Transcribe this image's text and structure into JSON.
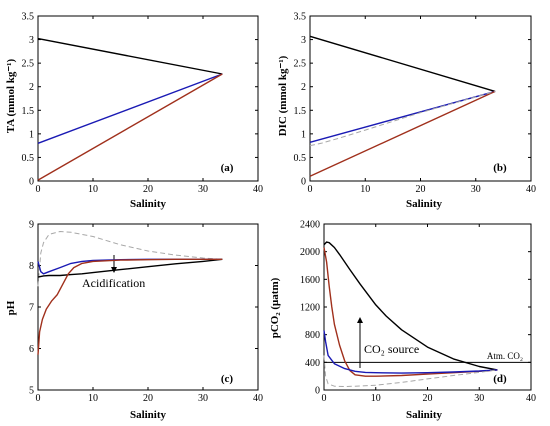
{
  "chart_data": [
    {
      "type": "line",
      "panel_label": "(a)",
      "xlabel": "Salinity",
      "ylabel": "TA (mmol kg⁻¹)",
      "xlim": [
        0,
        40
      ],
      "ylim": [
        0,
        3.5
      ],
      "xticks": [
        0,
        10,
        20,
        30,
        40
      ],
      "yticks": [
        0,
        0.5,
        1,
        1.5,
        2,
        2.5,
        3,
        3.5
      ],
      "grid": false,
      "series": [
        {
          "color": "#000000",
          "dash": false,
          "x": [
            0,
            33.5
          ],
          "y": [
            3.02,
            2.27
          ]
        },
        {
          "color": "#1a1ab4",
          "dash": false,
          "x": [
            0,
            33.5
          ],
          "y": [
            0.8,
            2.27
          ]
        },
        {
          "color": "#a0301c",
          "dash": false,
          "x": [
            0,
            33.5
          ],
          "y": [
            0.02,
            2.27
          ]
        }
      ]
    },
    {
      "type": "line",
      "panel_label": "(b)",
      "xlabel": "Salinity",
      "ylabel": "DIC (mmol kg⁻¹)",
      "xlim": [
        0,
        40
      ],
      "ylim": [
        0,
        3.5
      ],
      "xticks": [
        0,
        10,
        20,
        30,
        40
      ],
      "yticks": [
        0,
        0.5,
        1,
        1.5,
        2,
        2.5,
        3,
        3.5
      ],
      "grid": false,
      "series": [
        {
          "color": "#000000",
          "dash": false,
          "x": [
            0,
            33.5
          ],
          "y": [
            3.07,
            1.9
          ]
        },
        {
          "color": "#1a1ab4",
          "dash": false,
          "x": [
            0,
            33.5
          ],
          "y": [
            0.82,
            1.9
          ]
        },
        {
          "color": "#a0301c",
          "dash": false,
          "x": [
            0,
            33.5
          ],
          "y": [
            0.1,
            1.9
          ]
        },
        {
          "color": "#a8a8a8",
          "dash": true,
          "x": [
            0,
            2,
            5,
            10,
            20,
            33.5
          ],
          "y": [
            0.75,
            0.8,
            0.9,
            1.08,
            1.45,
            1.9
          ]
        }
      ]
    },
    {
      "type": "line",
      "panel_label": "(c)",
      "xlabel": "Salinity",
      "ylabel": "pH",
      "xlim": [
        0,
        40
      ],
      "ylim": [
        5,
        9
      ],
      "xticks": [
        0,
        10,
        20,
        30,
        40
      ],
      "yticks": [
        5,
        6,
        7,
        8,
        9
      ],
      "grid": false,
      "annotation": "Acidification",
      "series": [
        {
          "color": "#a8a8a8",
          "dash": true,
          "x": [
            0,
            0.5,
            1,
            2,
            4,
            6,
            10,
            15,
            20,
            25,
            30,
            33.5
          ],
          "y": [
            7.5,
            8.3,
            8.55,
            8.75,
            8.82,
            8.8,
            8.7,
            8.5,
            8.35,
            8.25,
            8.18,
            8.15
          ]
        },
        {
          "color": "#1a1ab4",
          "dash": false,
          "x": [
            0,
            0.5,
            1,
            2,
            4,
            6,
            8,
            10,
            15,
            20,
            25,
            30,
            33.5
          ],
          "y": [
            8.1,
            7.85,
            7.8,
            7.85,
            7.95,
            8.05,
            8.1,
            8.12,
            8.14,
            8.15,
            8.15,
            8.15,
            8.15
          ]
        },
        {
          "color": "#000000",
          "dash": false,
          "x": [
            0,
            1,
            2,
            4,
            6,
            8,
            10,
            15,
            20,
            25,
            30,
            33.5
          ],
          "y": [
            7.72,
            7.75,
            7.76,
            7.76,
            7.78,
            7.8,
            7.83,
            7.9,
            7.97,
            8.04,
            8.1,
            8.15
          ]
        },
        {
          "color": "#a0301c",
          "dash": false,
          "x": [
            0,
            0.3,
            0.8,
            1.5,
            2.5,
            3.5,
            4.5,
            5.5,
            6.5,
            8,
            10,
            15,
            20,
            25,
            30,
            33.5
          ],
          "y": [
            5.85,
            6.4,
            6.7,
            6.95,
            7.15,
            7.3,
            7.55,
            7.8,
            7.95,
            8.05,
            8.1,
            8.13,
            8.14,
            8.15,
            8.15,
            8.15
          ]
        }
      ]
    },
    {
      "type": "line",
      "panel_label": "(d)",
      "xlabel": "Salinity",
      "ylabel": "pCO₂ (μatm)",
      "xlim": [
        0,
        40
      ],
      "ylim": [
        0,
        2400
      ],
      "xticks": [
        0,
        10,
        20,
        30,
        40
      ],
      "yticks": [
        0,
        400,
        800,
        1200,
        1600,
        2000,
        2400
      ],
      "grid": false,
      "annotation": "CO₂ source",
      "reference_label": "Atm. CO₂",
      "reference_y": 400,
      "series": [
        {
          "color": "#000000",
          "dash": false,
          "x": [
            0,
            0.5,
            1,
            2,
            3,
            5,
            7,
            10,
            12,
            15,
            20,
            25,
            30,
            33.5
          ],
          "y": [
            2100,
            2140,
            2130,
            2060,
            1960,
            1740,
            1530,
            1230,
            1070,
            870,
            620,
            450,
            340,
            290
          ]
        },
        {
          "color": "#a0301c",
          "dash": false,
          "x": [
            0,
            0.5,
            1,
            1.5,
            2,
            3,
            4,
            5,
            6,
            8,
            10,
            15,
            20,
            25,
            30,
            33.5
          ],
          "y": [
            2060,
            1850,
            1500,
            1200,
            950,
            650,
            420,
            280,
            220,
            200,
            200,
            210,
            230,
            250,
            270,
            290
          ]
        },
        {
          "color": "#1a1ab4",
          "dash": false,
          "x": [
            0,
            0.3,
            0.8,
            2,
            4,
            6,
            8,
            10,
            15,
            20,
            25,
            30,
            33.5
          ],
          "y": [
            860,
            700,
            500,
            380,
            310,
            270,
            255,
            250,
            245,
            250,
            260,
            275,
            290
          ]
        },
        {
          "color": "#a8a8a8",
          "dash": true,
          "x": [
            0,
            0.3,
            0.8,
            2,
            4,
            6,
            10,
            15,
            20,
            25,
            30,
            33.5
          ],
          "y": [
            500,
            200,
            90,
            55,
            50,
            55,
            70,
            110,
            160,
            210,
            255,
            290
          ]
        }
      ]
    }
  ]
}
